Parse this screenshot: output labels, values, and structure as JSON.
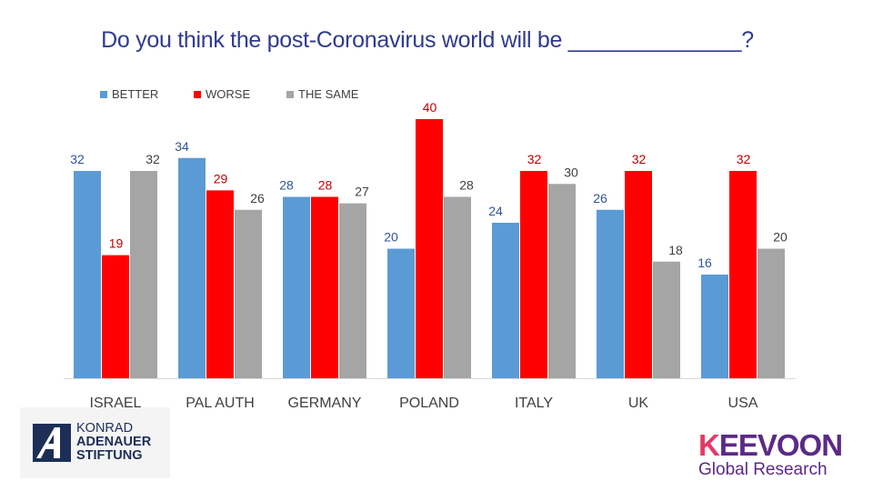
{
  "title": "Do you think the post-Coronavirus world will be ______________?",
  "chart_data": {
    "type": "bar",
    "categories": [
      "ISRAEL",
      "PAL AUTH",
      "GERMANY",
      "POLAND",
      "ITALY",
      "UK",
      "USA"
    ],
    "series": [
      {
        "name": "BETTER",
        "color": "#5b9bd5",
        "values": [
          32,
          34,
          28,
          20,
          24,
          26,
          16
        ]
      },
      {
        "name": "WORSE",
        "color": "#ff0000",
        "values": [
          19,
          29,
          28,
          40,
          32,
          32,
          32
        ]
      },
      {
        "name": "THE SAME",
        "color": "#a5a5a5",
        "values": [
          32,
          26,
          27,
          28,
          30,
          18,
          20
        ]
      }
    ],
    "ylim": [
      0,
      40
    ],
    "legend_position": "top-left",
    "grid": false,
    "data_labels": true,
    "label_colors": {
      "BETTER": "#2f5597",
      "WORSE": "#c00000",
      "THE SAME": "#404040"
    }
  },
  "logos": {
    "kas": {
      "line1": "KONRAD",
      "line2": "ADENAUER",
      "line3": "STIFTUNG",
      "icon": "kas-a-icon"
    },
    "keevoon": {
      "word_k": "K",
      "word_rest": "EEVOON",
      "subtitle": "Global Research"
    }
  }
}
